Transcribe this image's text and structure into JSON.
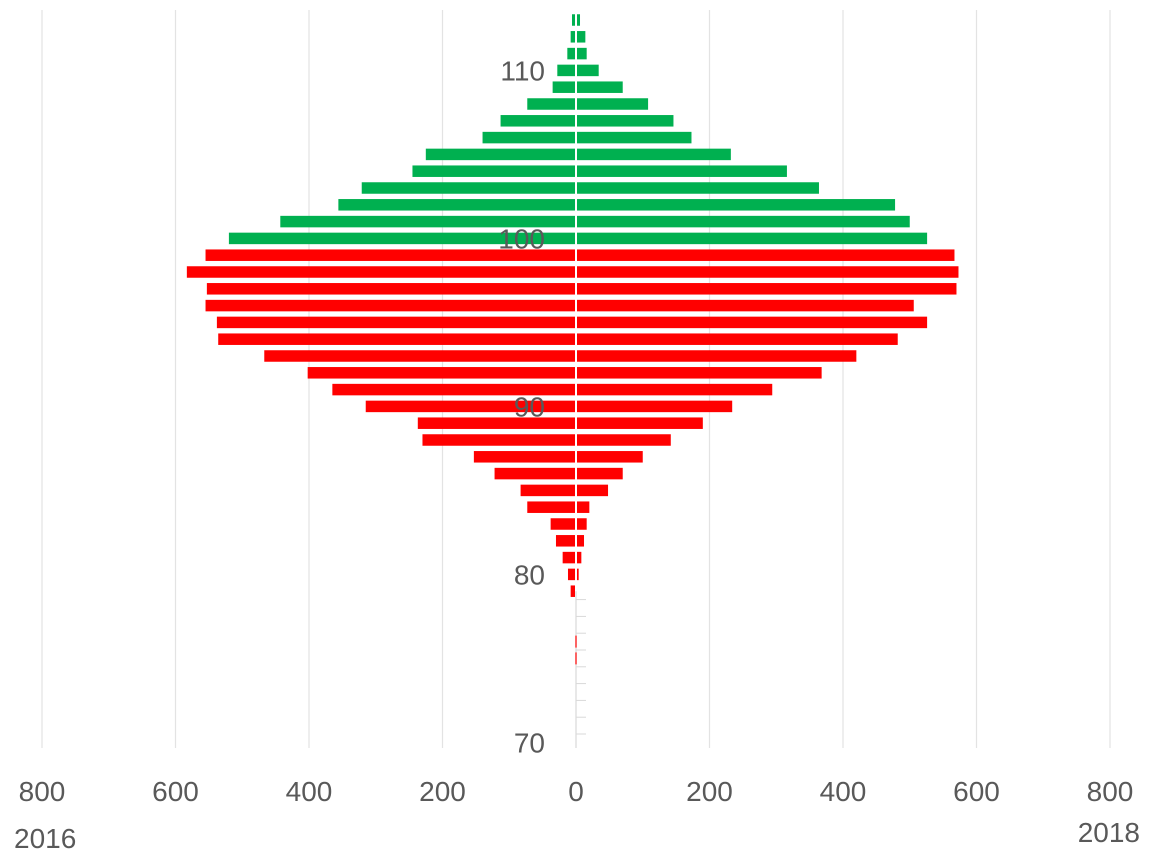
{
  "chart_data": {
    "type": "bar",
    "orientation": "horizontal-diverging",
    "title": "",
    "left_label": "2016",
    "right_label": "2018",
    "x_tick_labels": [
      "800",
      "600",
      "400",
      "200",
      "0",
      "200",
      "400",
      "600",
      "800"
    ],
    "xlim": [
      -800,
      800
    ],
    "y_tick_labels": [
      "70",
      "80",
      "90",
      "100",
      "110"
    ],
    "grid": true,
    "colors": {
      "above_100": "#00b050",
      "below_100": "#ff0000"
    },
    "categories": [
      71,
      72,
      73,
      74,
      75,
      76,
      77,
      78,
      79,
      80,
      81,
      82,
      83,
      84,
      85,
      86,
      87,
      88,
      89,
      90,
      91,
      92,
      93,
      94,
      95,
      96,
      97,
      98,
      99,
      100,
      101,
      102,
      103,
      104,
      105,
      106,
      107,
      108,
      109,
      110,
      111,
      112,
      113
    ],
    "series": [
      {
        "values": [
          0,
          0,
          0,
          0,
          0,
          1,
          1,
          0,
          8,
          12,
          20,
          30,
          38,
          73,
          83,
          122,
          153,
          230,
          237,
          315,
          365,
          402,
          467,
          536,
          538,
          555,
          553,
          583,
          555,
          520,
          443,
          356,
          321,
          245,
          225,
          140,
          113,
          73,
          35,
          28,
          13,
          8,
          6
        ]
      },
      {
        "values": [
          0,
          0,
          0,
          0,
          0,
          0,
          0,
          0,
          0,
          4,
          8,
          12,
          16,
          20,
          48,
          70,
          100,
          142,
          190,
          234,
          294,
          368,
          420,
          482,
          526,
          506,
          570,
          573,
          567,
          526,
          500,
          478,
          364,
          316,
          232,
          173,
          146,
          108,
          70,
          34,
          16,
          14,
          6
        ]
      }
    ]
  }
}
